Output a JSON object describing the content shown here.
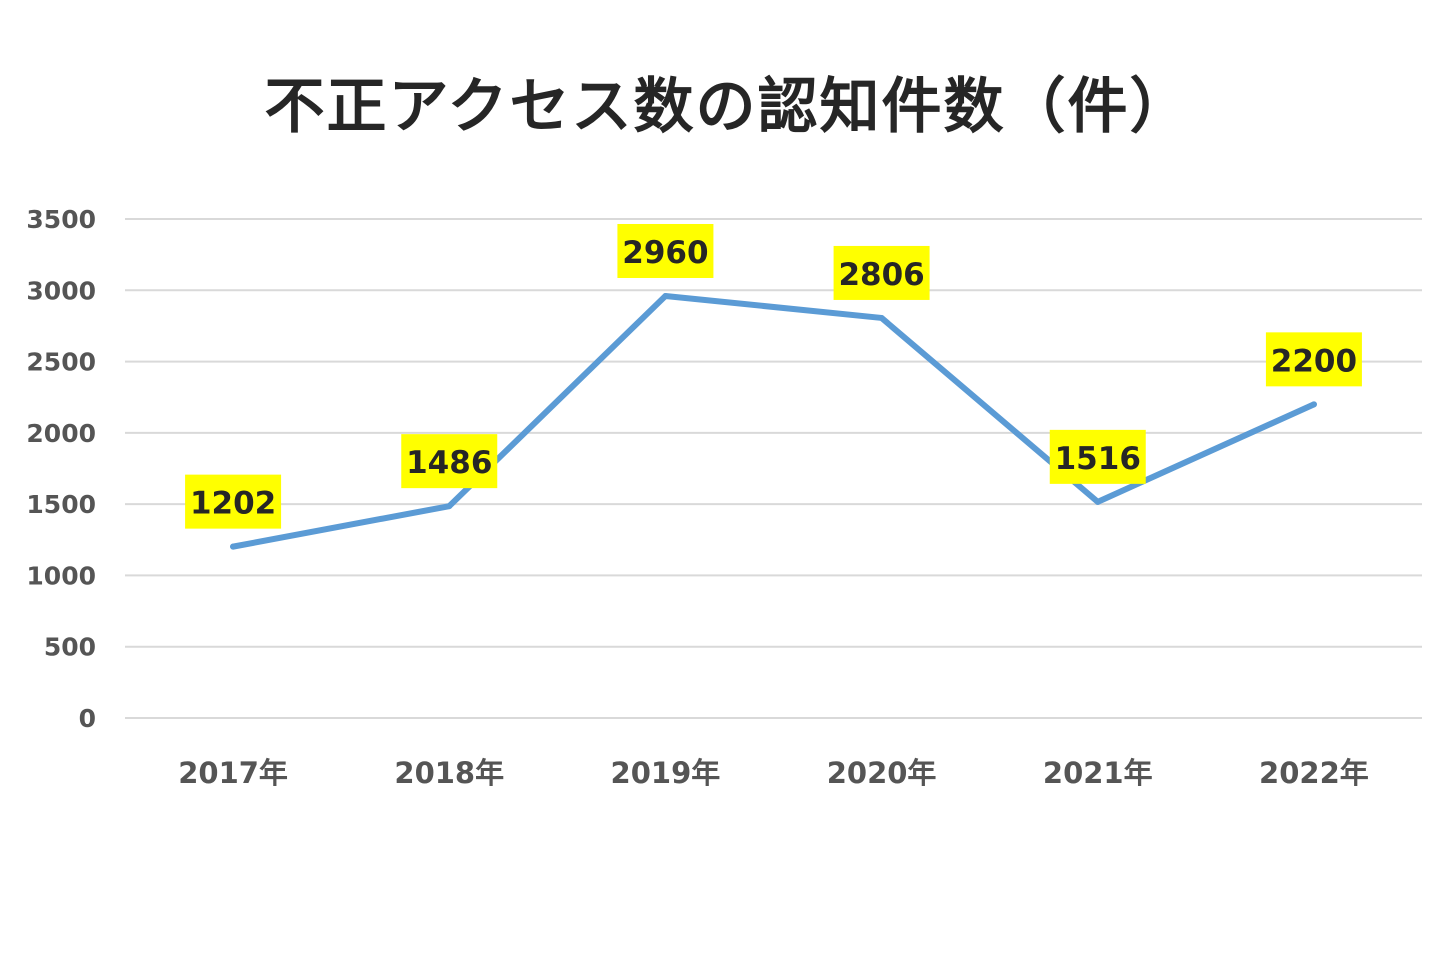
{
  "chart_data": {
    "type": "line",
    "title": "不正アクセス数の認知件数（件）",
    "categories": [
      "2017年",
      "2018年",
      "2019年",
      "2020年",
      "2021年",
      "2022年"
    ],
    "series": [
      {
        "values": [
          1202,
          1486,
          2960,
          2806,
          1516,
          2200
        ]
      }
    ],
    "ylim": [
      0,
      3500
    ],
    "yticks": [
      0,
      500,
      1000,
      1500,
      2000,
      2500,
      3000,
      3500
    ],
    "grid": true,
    "legend": "none",
    "data_labels": true,
    "colors": {
      "line": "#5b9bd5",
      "label_background": "#ffff00",
      "grid": "#d9d9d9"
    }
  }
}
